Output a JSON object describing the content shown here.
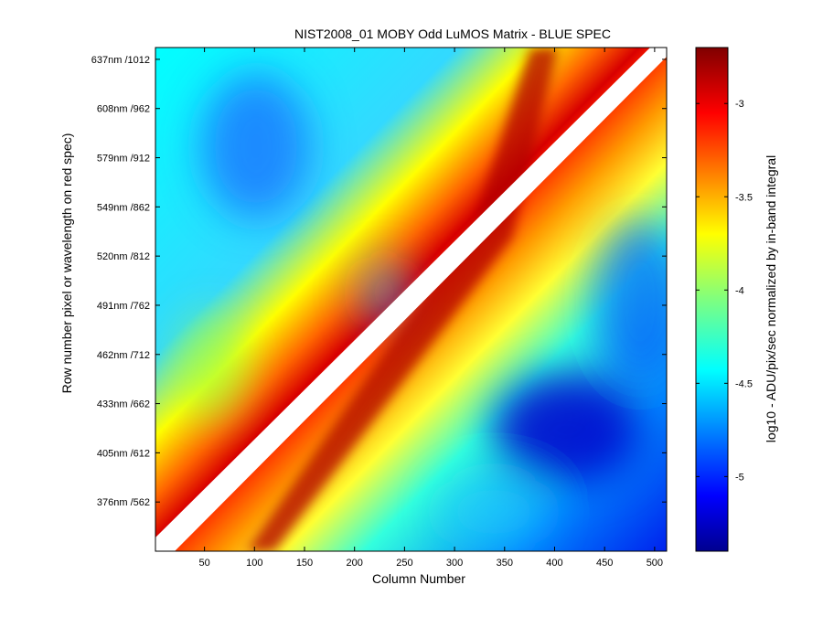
{
  "chart_data": {
    "type": "heatmap",
    "title": "NIST2008_01  MOBY Odd LuMOS Matrix - BLUE SPEC",
    "xlabel": "Column Number",
    "ylabel": "Row number pixel or wavelength on red spec)",
    "xlim": [
      1,
      512
    ],
    "ylim": [
      512,
      1024
    ],
    "x_ticks": [
      {
        "value": 50,
        "label": "50"
      },
      {
        "value": 100,
        "label": "100"
      },
      {
        "value": 150,
        "label": "150"
      },
      {
        "value": 200,
        "label": "200"
      },
      {
        "value": 250,
        "label": "250"
      },
      {
        "value": 300,
        "label": "300"
      },
      {
        "value": 350,
        "label": "350"
      },
      {
        "value": 400,
        "label": "400"
      },
      {
        "value": 450,
        "label": "450"
      },
      {
        "value": 500,
        "label": "500"
      }
    ],
    "y_ticks": [
      {
        "value": 562,
        "label": "376nm /562"
      },
      {
        "value": 612,
        "label": "405nm /612"
      },
      {
        "value": 662,
        "label": "433nm /662"
      },
      {
        "value": 712,
        "label": "462nm /712"
      },
      {
        "value": 762,
        "label": "491nm /762"
      },
      {
        "value": 812,
        "label": "520nm /812"
      },
      {
        "value": 862,
        "label": "549nm /862"
      },
      {
        "value": 912,
        "label": "579nm /912"
      },
      {
        "value": 962,
        "label": "608nm /962"
      },
      {
        "value": 1012,
        "label": "637nm /1012"
      }
    ],
    "colorbar": {
      "label": "log10 - ADU/pix/sec normalized by in-band integral",
      "range": [
        -5.4,
        -2.7
      ],
      "colormap": "jet",
      "ticks": [
        {
          "value": -3,
          "label": "-3"
        },
        {
          "value": -3.5,
          "label": "-3.5"
        },
        {
          "value": -4,
          "label": "-4"
        },
        {
          "value": -4.5,
          "label": "-4.5"
        },
        {
          "value": -5,
          "label": "-5"
        }
      ]
    },
    "grid": false
  }
}
